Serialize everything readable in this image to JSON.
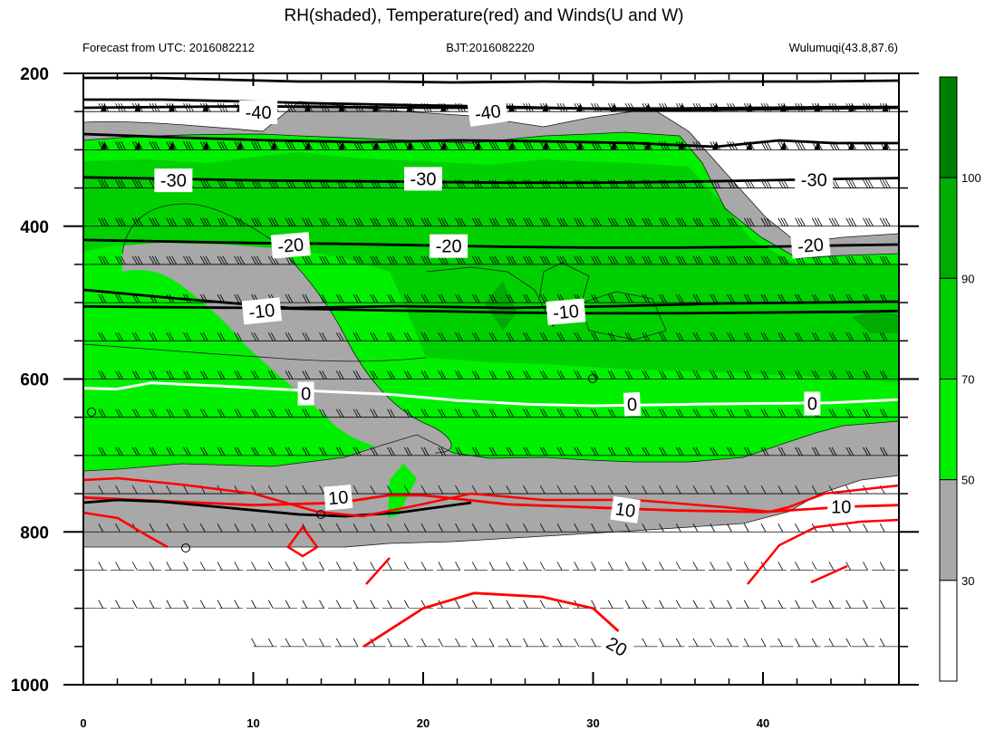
{
  "chart_data": {
    "type": "heatmap",
    "title": "RH(shaded), Temperature(red) and Winds(U and W)",
    "subtitle_left": "Forecast from UTC: 2016082212",
    "subtitle_center": "BJT:2016082220",
    "subtitle_right": "Wulumuqi(43.8,87.6)",
    "xlim": [
      0,
      48
    ],
    "ylim": [
      1000,
      200
    ],
    "x_ticks": [
      0,
      10,
      20,
      30,
      40
    ],
    "y_ticks": [
      200,
      400,
      600,
      800,
      1000
    ],
    "colorbar": {
      "levels": [
        30,
        50,
        70,
        90,
        100
      ],
      "colors": [
        "#ffffff",
        "#a8a8a8",
        "#00f000",
        "#00d000",
        "#00ac00",
        "#007e00"
      ],
      "labels": [
        "30",
        "50",
        "70",
        "90",
        "100"
      ]
    },
    "wind_levels": [
      250,
      300,
      350,
      400,
      450,
      500,
      550,
      600,
      650,
      700,
      750,
      800,
      850,
      900,
      950
    ],
    "temperature_contours": [
      {
        "level": -40,
        "label": "-40",
        "color": "#000000",
        "x": [
          0,
          5,
          10,
          15,
          20,
          25,
          30,
          35,
          40,
          45,
          48
        ],
        "p": [
          245,
          244,
          243,
          244,
          245,
          245,
          246,
          246,
          245,
          244,
          244
        ]
      },
      {
        "level": -30,
        "label": "-30",
        "color": "#000000",
        "x": [
          0,
          5,
          10,
          15,
          20,
          25,
          30,
          35,
          40,
          45,
          48
        ],
        "p": [
          336,
          338,
          340,
          341,
          342,
          343,
          343,
          342,
          340,
          338,
          337
        ]
      },
      {
        "level": -20,
        "label": "-20",
        "color": "#000000",
        "x": [
          0,
          5,
          10,
          15,
          20,
          25,
          30,
          35,
          40,
          45,
          48
        ],
        "p": [
          418,
          420,
          422,
          423,
          425,
          427,
          428,
          428,
          427,
          425,
          424
        ]
      },
      {
        "level": -10,
        "label": "-10",
        "color": "#000000",
        "x": [
          0,
          5,
          10,
          15,
          20,
          25,
          30,
          35,
          40,
          45,
          48
        ],
        "p": [
          505,
          506,
          507,
          509,
          511,
          513,
          514,
          514,
          513,
          512,
          511
        ]
      },
      {
        "level": 0,
        "label": "0",
        "color": "#ffffff",
        "x": [
          0,
          2,
          4,
          8,
          12,
          18,
          22,
          26,
          30,
          36,
          40,
          44,
          48
        ],
        "p": [
          612,
          613,
          605,
          609,
          614,
          620,
          628,
          633,
          635,
          633,
          632,
          631,
          627
        ]
      },
      {
        "level": 10,
        "label": "10",
        "color": "#ff0000",
        "x": [
          0,
          5,
          10,
          15,
          18,
          20,
          25,
          30,
          35,
          40,
          45,
          48
        ],
        "p": [
          755,
          760,
          765,
          762,
          752,
          752,
          764,
          768,
          772,
          774,
          767,
          765
        ]
      },
      {
        "level": 20,
        "label": "20",
        "color": "#ff0000",
        "x": [
          16.5,
          20,
          23,
          27,
          30,
          31.5
        ],
        "p": [
          950,
          900,
          880,
          885,
          900,
          930
        ]
      }
    ],
    "contour_labels": [
      "-40",
      "-40",
      "-30",
      "-30",
      "-30",
      "-20",
      "-20",
      "-20",
      "-10",
      "-10",
      "0",
      "0",
      "0",
      "10",
      "10",
      "10",
      "20"
    ]
  }
}
